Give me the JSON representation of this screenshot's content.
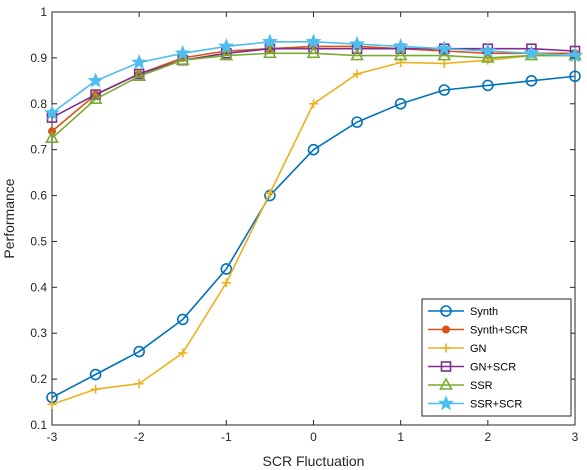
{
  "chart_data": {
    "type": "line",
    "title": "",
    "xlabel": "SCR Fluctuation",
    "ylabel": "Performance",
    "xlim": [
      -3,
      3
    ],
    "ylim": [
      0.1,
      1
    ],
    "xticks": [
      -3,
      -2,
      -1,
      0,
      1,
      2,
      3
    ],
    "yticks": [
      0.1,
      0.2,
      0.3,
      0.4,
      0.5,
      0.6,
      0.7,
      0.8,
      0.9,
      1
    ],
    "xtick_labels": [
      "-3",
      "-2",
      "-1",
      "0",
      "1",
      "2",
      "3"
    ],
    "ytick_labels": [
      "0.1",
      "0.2",
      "0.3",
      "0.4",
      "0.5",
      "0.6",
      "0.7",
      "0.8",
      "0.9",
      "1"
    ],
    "grid": false,
    "legend_position": "bottom-right",
    "x": [
      -3,
      -2.5,
      -2,
      -1.5,
      -1,
      -0.5,
      0,
      0.5,
      1,
      1.5,
      2,
      2.5,
      3
    ],
    "series": [
      {
        "name": "Synth",
        "color": "#0072BD",
        "marker": "circle",
        "values": [
          0.16,
          0.21,
          0.26,
          0.33,
          0.44,
          0.6,
          0.7,
          0.76,
          0.8,
          0.83,
          0.84,
          0.85,
          0.86
        ]
      },
      {
        "name": "Synth+SCR",
        "color": "#D95319",
        "marker": "dot",
        "values": [
          0.74,
          0.82,
          0.865,
          0.9,
          0.915,
          0.92,
          0.925,
          0.925,
          0.92,
          0.915,
          0.91,
          0.91,
          0.91
        ]
      },
      {
        "name": "GN",
        "color": "#EDB120",
        "marker": "plus",
        "values": [
          0.145,
          0.178,
          0.19,
          0.257,
          0.41,
          0.605,
          0.8,
          0.865,
          0.89,
          0.888,
          0.895,
          0.905,
          0.905
        ]
      },
      {
        "name": "GN+SCR",
        "color": "#7E2F8E",
        "marker": "square",
        "values": [
          0.77,
          0.82,
          0.865,
          0.895,
          0.91,
          0.92,
          0.92,
          0.92,
          0.92,
          0.92,
          0.92,
          0.92,
          0.915
        ]
      },
      {
        "name": "SSR",
        "color": "#77AC30",
        "marker": "triangle",
        "values": [
          0.725,
          0.81,
          0.86,
          0.895,
          0.905,
          0.91,
          0.91,
          0.905,
          0.905,
          0.905,
          0.9,
          0.905,
          0.905
        ]
      },
      {
        "name": "SSR+SCR",
        "color": "#4DBEEE",
        "marker": "star",
        "values": [
          0.78,
          0.85,
          0.89,
          0.91,
          0.925,
          0.935,
          0.935,
          0.93,
          0.925,
          0.92,
          0.915,
          0.91,
          0.905
        ]
      }
    ]
  }
}
